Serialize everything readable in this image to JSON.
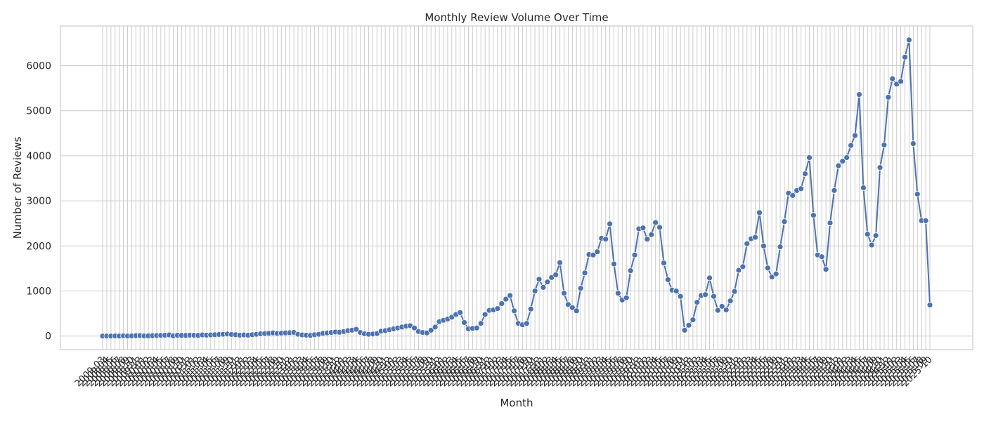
{
  "chart_data": {
    "type": "line",
    "title": "Monthly Review Volume Over Time",
    "xlabel": "Month",
    "ylabel": "Number of Reviews",
    "ylim": [
      -300,
      6880
    ],
    "yticks": [
      0,
      1000,
      2000,
      3000,
      4000,
      5000,
      6000
    ],
    "grid": true,
    "marker": "circle",
    "line_color": "#4c72b0",
    "x_start": "2009-03",
    "x_end": "2025-03",
    "visible_tick_labels": [
      "2009-03",
      "2025-03"
    ],
    "values": [
      0,
      0,
      0,
      2,
      0,
      5,
      2,
      3,
      8,
      10,
      3,
      5,
      8,
      12,
      15,
      20,
      25,
      5,
      18,
      15,
      15,
      20,
      18,
      15,
      25,
      20,
      25,
      30,
      35,
      40,
      45,
      35,
      30,
      20,
      25,
      20,
      30,
      40,
      50,
      55,
      60,
      70,
      60,
      65,
      70,
      75,
      80,
      40,
      25,
      20,
      15,
      30,
      40,
      60,
      70,
      80,
      90,
      85,
      100,
      120,
      130,
      150,
      80,
      50,
      40,
      45,
      55,
      110,
      120,
      140,
      160,
      180,
      200,
      220,
      230,
      180,
      100,
      80,
      70,
      130,
      200,
      320,
      350,
      380,
      420,
      480,
      520,
      300,
      160,
      170,
      180,
      280,
      480,
      570,
      580,
      610,
      720,
      820,
      900,
      560,
      280,
      250,
      280,
      600,
      1000,
      1260,
      1080,
      1200,
      1300,
      1360,
      1630,
      950,
      700,
      630,
      560,
      1060,
      1400,
      1810,
      1800,
      1870,
      2170,
      2150,
      2490,
      1600,
      950,
      800,
      850,
      1450,
      1800,
      2380,
      2400,
      2150,
      2250,
      2520,
      2410,
      1620,
      1250,
      1020,
      1000,
      880,
      130,
      240,
      360,
      750,
      900,
      920,
      1290,
      880,
      570,
      660,
      580,
      780,
      990,
      1460,
      1540,
      2050,
      2160,
      2190,
      2740,
      2000,
      1510,
      1310,
      1380,
      1980,
      2540,
      3170,
      3120,
      3230,
      3270,
      3600,
      3960,
      2680,
      1800,
      1760,
      1480,
      2510,
      3230,
      3780,
      3880,
      3960,
      4230,
      4450,
      5360,
      3290,
      2260,
      2020,
      2230,
      3740,
      4240,
      5300,
      5710,
      5590,
      5650,
      6190,
      6570,
      4270,
      3150,
      2560,
      2560,
      690
    ]
  }
}
